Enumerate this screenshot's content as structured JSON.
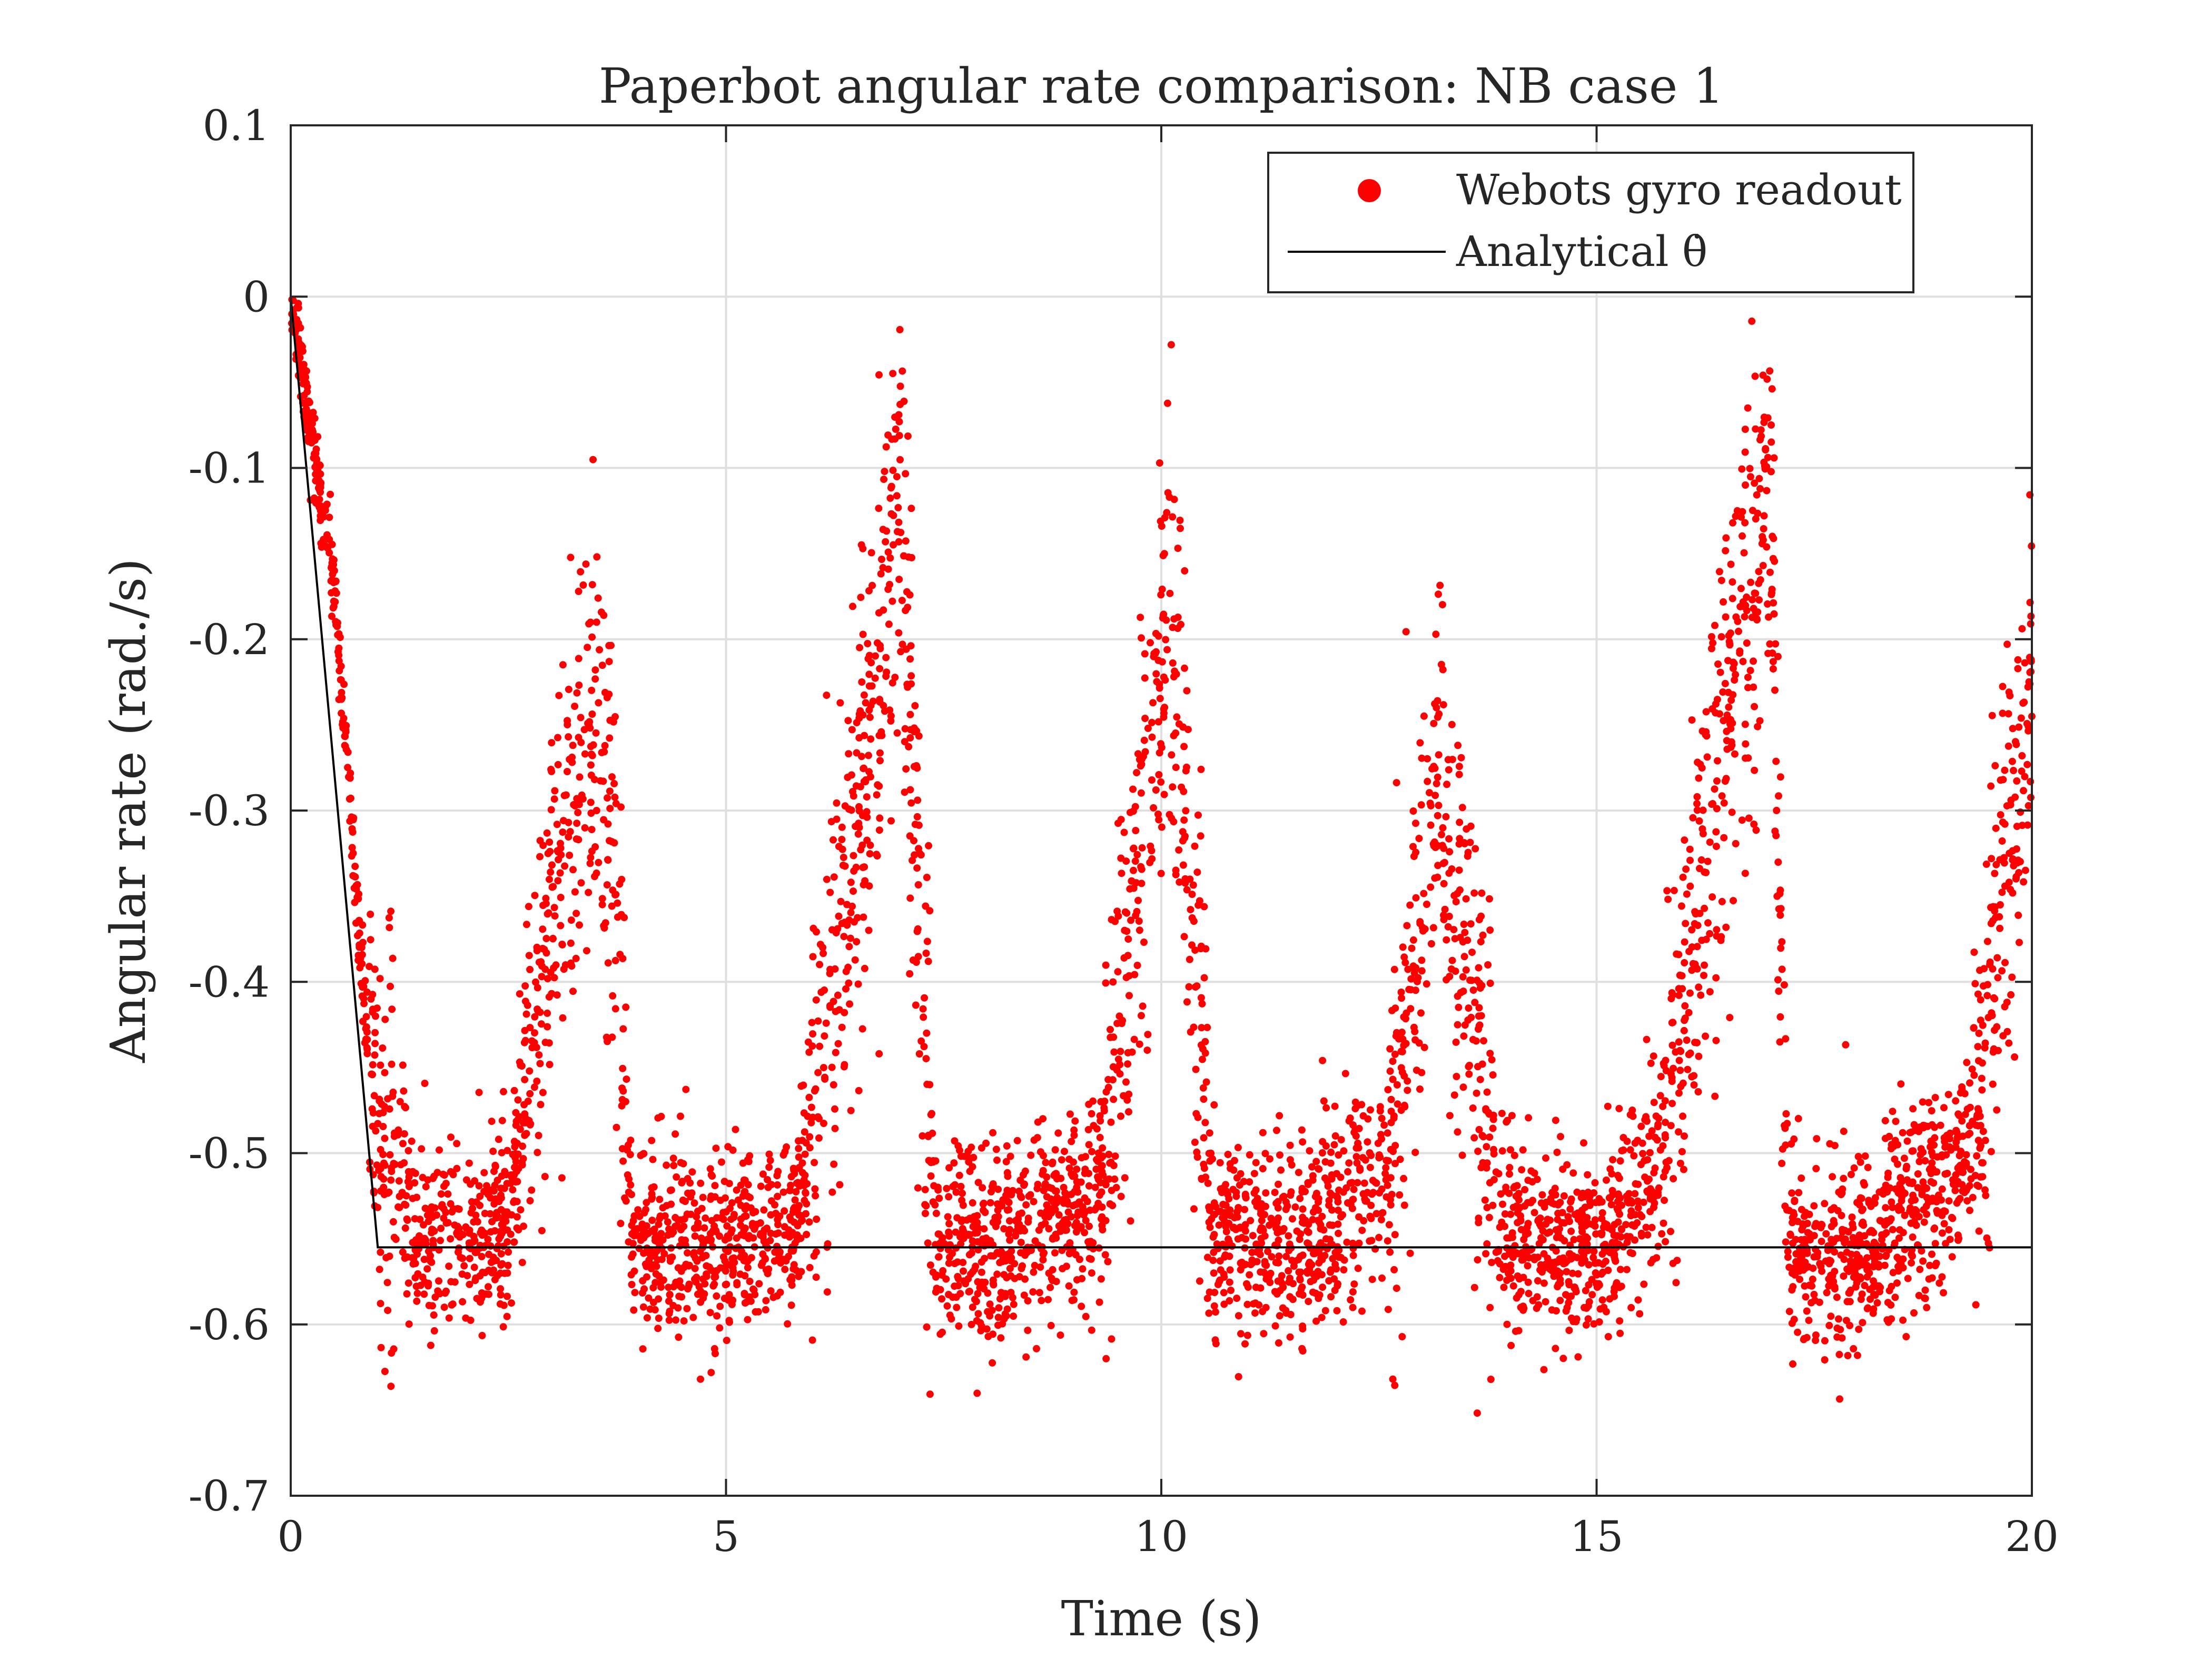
{
  "chart_data": {
    "type": "scatter",
    "title": "Paperbot angular rate comparison: NB case 1",
    "xlabel": "Time (s)",
    "ylabel": "Angular rate (rad./s)",
    "xlim": [
      0,
      20
    ],
    "ylim": [
      -0.7,
      0.1
    ],
    "xticks": [
      "0",
      "5",
      "10",
      "15",
      "20"
    ],
    "yticks": [
      "0.1",
      "0",
      "-0.1",
      "-0.2",
      "-0.3",
      "-0.4",
      "-0.5",
      "-0.6",
      "-0.7"
    ],
    "grid": true,
    "legend_position": "top-right",
    "series": [
      {
        "name": "Webots gyro readout",
        "type": "scatter",
        "color": "#ff0000",
        "description_points": [
          {
            "x": 0.0,
            "y": 0.0
          },
          {
            "x": 0.5,
            "y": -0.17
          },
          {
            "x": 0.9,
            "y": -0.45
          },
          {
            "x": 1.5,
            "y": -0.555
          },
          {
            "x": 2.5,
            "y": -0.545
          },
          {
            "x": 3.0,
            "y": -0.35
          },
          {
            "x": 3.5,
            "y": -0.25
          },
          {
            "x": 3.7,
            "y": -0.3
          },
          {
            "x": 3.9,
            "y": -0.55
          },
          {
            "x": 5.0,
            "y": -0.555
          },
          {
            "x": 5.8,
            "y": -0.545
          },
          {
            "x": 6.5,
            "y": -0.32
          },
          {
            "x": 7.0,
            "y": -0.12
          },
          {
            "x": 7.4,
            "y": -0.55
          },
          {
            "x": 8.5,
            "y": -0.555
          },
          {
            "x": 9.3,
            "y": -0.52
          },
          {
            "x": 9.7,
            "y": -0.35
          },
          {
            "x": 10.1,
            "y": -0.17
          },
          {
            "x": 10.6,
            "y": -0.55
          },
          {
            "x": 11.7,
            "y": -0.555
          },
          {
            "x": 12.6,
            "y": -0.5
          },
          {
            "x": 13.2,
            "y": -0.28
          },
          {
            "x": 13.7,
            "y": -0.45
          },
          {
            "x": 13.9,
            "y": -0.55
          },
          {
            "x": 15.0,
            "y": -0.555
          },
          {
            "x": 15.8,
            "y": -0.5
          },
          {
            "x": 16.3,
            "y": -0.3
          },
          {
            "x": 17.0,
            "y": -0.12
          },
          {
            "x": 17.2,
            "y": -0.56
          },
          {
            "x": 18.2,
            "y": -0.555
          },
          {
            "x": 19.3,
            "y": -0.5
          },
          {
            "x": 19.7,
            "y": -0.35
          },
          {
            "x": 20.0,
            "y": -0.22
          }
        ]
      },
      {
        "name": "Analytical θ̇",
        "type": "line",
        "color": "#000000",
        "x": [
          0,
          1.0,
          20
        ],
        "y": [
          0,
          -0.555,
          -0.555
        ]
      }
    ]
  }
}
